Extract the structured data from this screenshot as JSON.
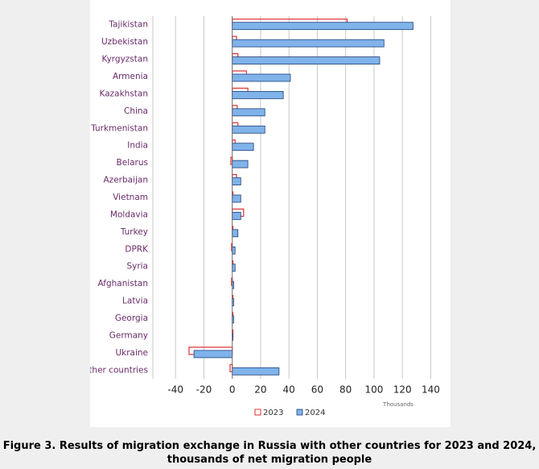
{
  "chart_data": {
    "type": "hbar",
    "caption": "Figure 3. Results of migration exchange in Russia with other countries for 2023 and 2024, thousands of net migration people",
    "x_unit_label": "Thousands",
    "categories": [
      "Tajikistan",
      "Uzbekistan",
      "Kyrgyzstan",
      "Armenia",
      "Kazakhstan",
      "China",
      "Turkmenistan",
      "India",
      "Belarus",
      "Azerbaijan",
      "Vietnam",
      "Moldavia",
      "Turkey",
      "DPRK",
      "Syria",
      "Afghanistan",
      "Latvia",
      "Georgia",
      "Germany",
      "Ukraine",
      "other countries"
    ],
    "series": [
      {
        "name": "2023",
        "color": "#e03030",
        "style": "outline",
        "values": [
          81,
          3,
          4,
          10,
          11,
          3.5,
          4,
          2,
          -1,
          3,
          0.5,
          8,
          0.5,
          -0.5,
          0.5,
          -0.5,
          0.5,
          0.5,
          0.5,
          -30.5,
          -1.5
        ]
      },
      {
        "name": "2024",
        "color": "#7fb3ea",
        "style": "filled",
        "values": [
          127.5,
          107,
          104,
          41,
          36,
          23,
          23,
          15,
          11,
          6,
          6,
          6,
          4,
          2,
          2,
          1,
          1,
          1,
          0.5,
          -27,
          33
        ]
      }
    ],
    "xlim": [
      -56,
      146
    ],
    "xticks": [
      -40,
      -20,
      0,
      20,
      40,
      60,
      80,
      100,
      120,
      140
    ],
    "grid": true,
    "legend": "bottom"
  }
}
